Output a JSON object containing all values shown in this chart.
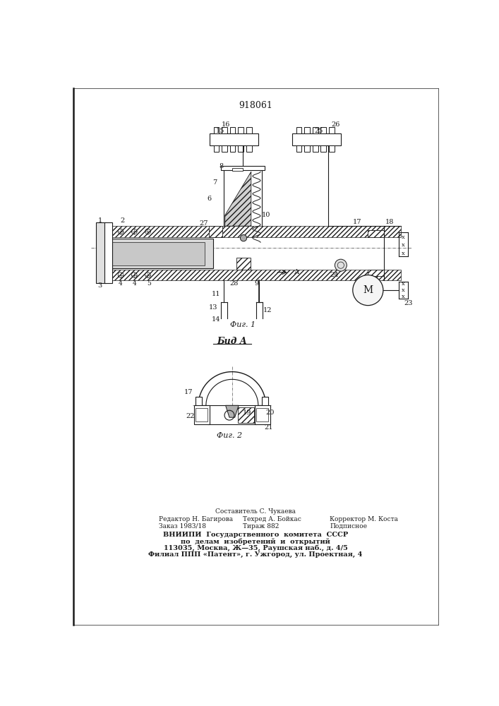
{
  "title": "918061",
  "background_color": "#ffffff",
  "line_color": "#1a1a1a",
  "fig1_label": "Фиг. 1",
  "fig2_label": "Фиг. 2",
  "vid_label": "Бид A",
  "footer_lines": [
    "Составитель С. Чукаева",
    "Редактор Н. Багирова",
    "Техред А. Бойкас",
    "Корректор М. Коста",
    "Заказ 1983/18",
    "Тираж 882",
    "Подписное",
    "ВНИИПИ  Государственного  комитета  СССР",
    "по  делам  изобретений  и  открытий",
    "113035, Москва, Ж—35, Раушская наб., д. 4/5",
    "Филиал ППП «Патент», г. Ужгород, ул. Проектная, 4"
  ]
}
